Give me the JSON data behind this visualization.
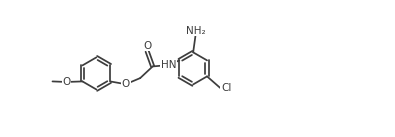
{
  "bg_color": "#ffffff",
  "line_color": "#3d3d3d",
  "lw": 1.25,
  "fs": 7.5,
  "dbl_off": 0.028,
  "BL": 0.48,
  "figsize": [
    3.95,
    1.37
  ],
  "dpi": 100,
  "xlim": [
    0.0,
    5.5
  ],
  "ylim": [
    0.18,
    2.55
  ]
}
